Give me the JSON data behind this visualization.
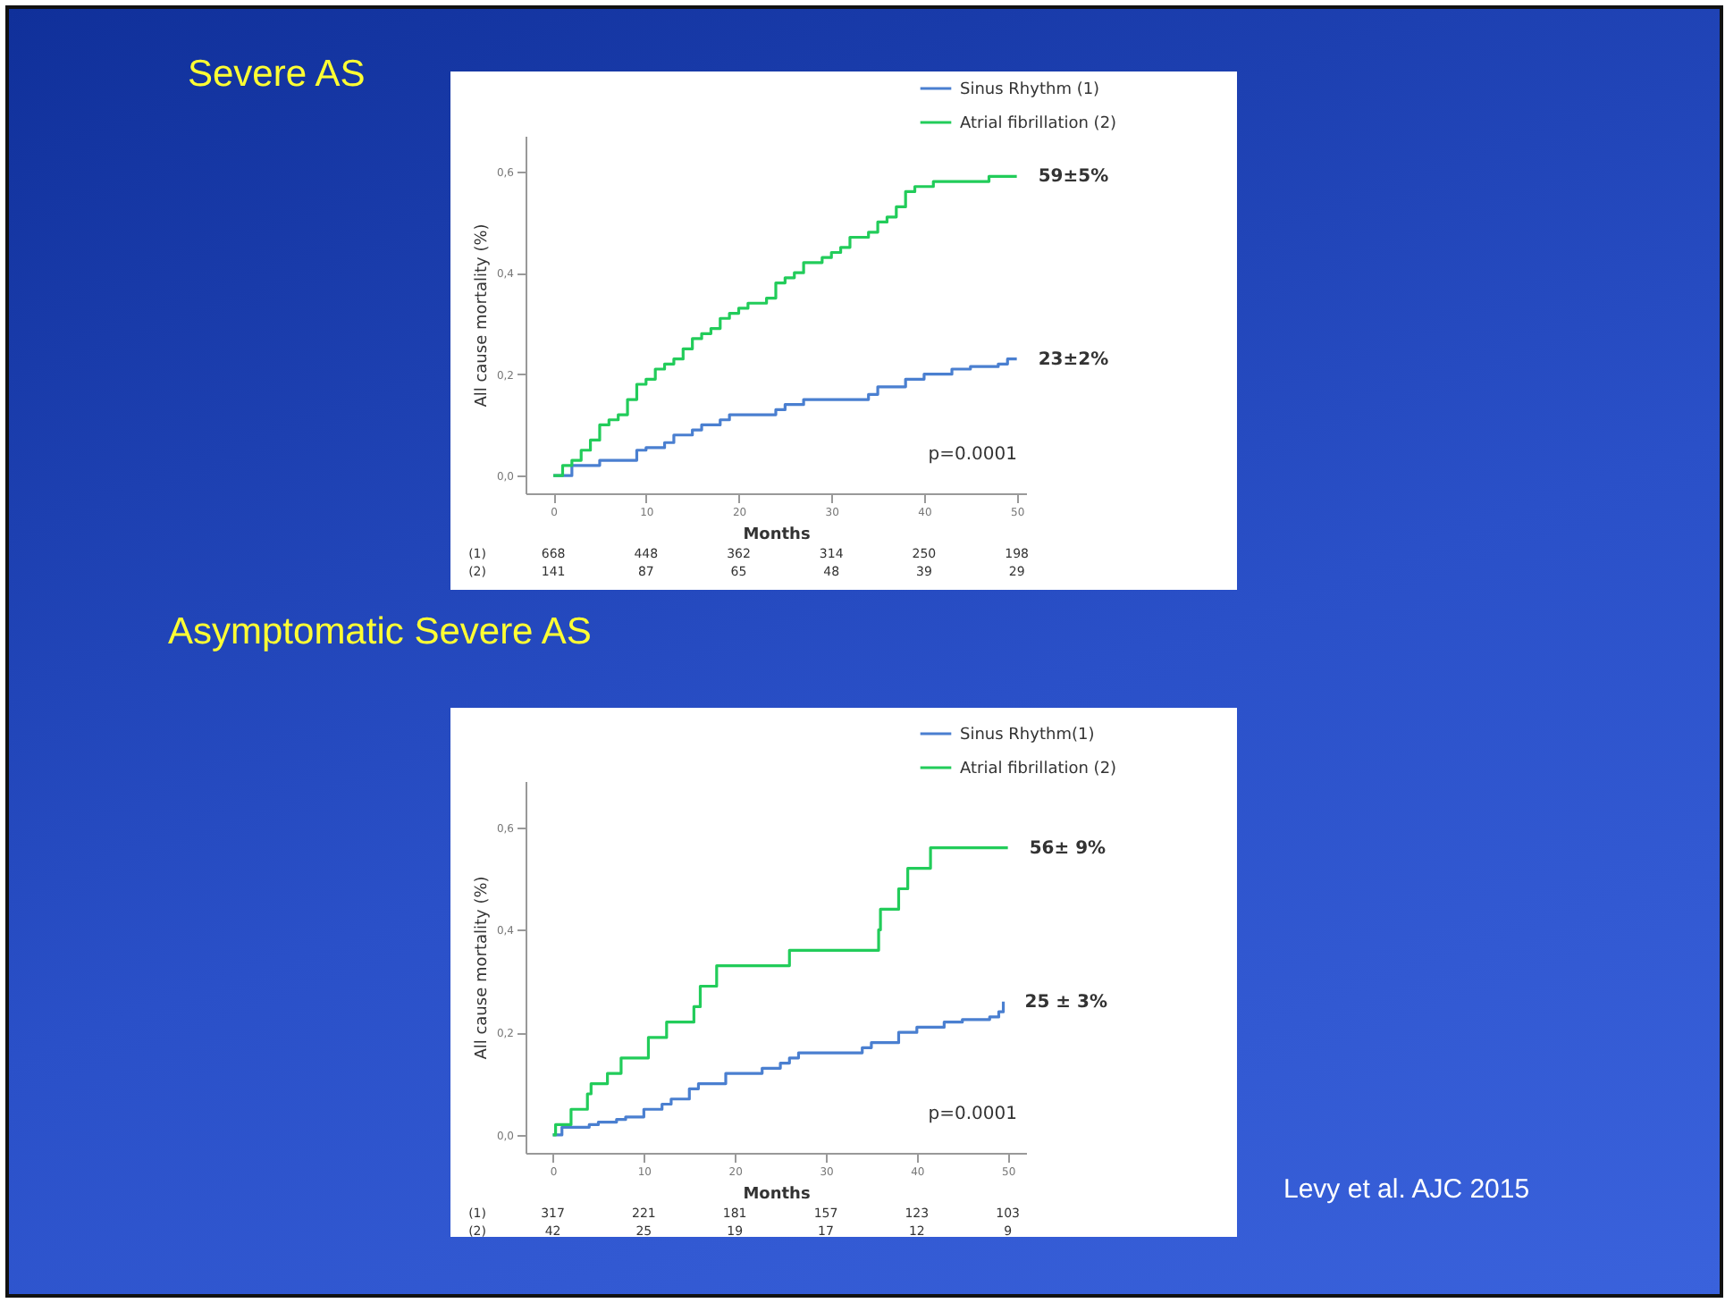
{
  "chart_data": [
    {
      "type": "step",
      "title": "Severe AS",
      "xlabel": "Months",
      "ylabel": "All cause mortality (%)",
      "xlim": [
        -3,
        51
      ],
      "xticks": [
        0,
        10,
        20,
        30,
        40,
        50
      ],
      "ylim": [
        -0.035,
        0.67
      ],
      "yticks": [
        {
          "value": 0,
          "label": "0,0"
        },
        {
          "value": 0.2,
          "label": "0,2"
        },
        {
          "value": 0.4,
          "label": "0,4"
        },
        {
          "value": 0.6,
          "label": "0,6"
        }
      ],
      "legend": "top right",
      "marker": "none",
      "line_style": "solid",
      "series": [
        {
          "name": "Sinus Rhythm (1)",
          "color": "#4a7fd0",
          "x": [
            0,
            2,
            5,
            7,
            9,
            10,
            12,
            13,
            15,
            16,
            18,
            19,
            22,
            24,
            25,
            27,
            33,
            34,
            35,
            37,
            38,
            40,
            43,
            45,
            48,
            49,
            50
          ],
          "values": [
            0,
            0.02,
            0.03,
            0.03,
            0.05,
            0.055,
            0.065,
            0.08,
            0.09,
            0.1,
            0.11,
            0.12,
            0.12,
            0.13,
            0.14,
            0.15,
            0.15,
            0.16,
            0.175,
            0.175,
            0.19,
            0.2,
            0.21,
            0.215,
            0.22,
            0.23,
            0.23
          ]
        },
        {
          "name": "Atrial fibrillation (2)",
          "color": "#22cc5a",
          "x": [
            0,
            1,
            2,
            3,
            4,
            5,
            6,
            7,
            8,
            9,
            10,
            11,
            12,
            13,
            14,
            15,
            16,
            17,
            18,
            19,
            20,
            21,
            23,
            24,
            25,
            26,
            27,
            29,
            30,
            31,
            32,
            34,
            35,
            36,
            37,
            38,
            39,
            41,
            47,
            50
          ],
          "values": [
            0,
            0.02,
            0.03,
            0.05,
            0.07,
            0.1,
            0.11,
            0.12,
            0.15,
            0.18,
            0.19,
            0.21,
            0.22,
            0.23,
            0.25,
            0.27,
            0.28,
            0.29,
            0.31,
            0.32,
            0.33,
            0.34,
            0.35,
            0.38,
            0.39,
            0.4,
            0.42,
            0.43,
            0.44,
            0.45,
            0.47,
            0.48,
            0.5,
            0.51,
            0.53,
            0.56,
            0.57,
            0.58,
            0.59,
            0.59
          ]
        }
      ],
      "annotations": [
        "59±5%",
        "23±2%",
        "p=0.0001",
        "(1)",
        "(2)",
        "668",
        "448",
        "362",
        "314",
        "250",
        "198",
        "141",
        "87",
        "65",
        "48",
        "39",
        "29"
      ]
    },
    {
      "type": "step",
      "title": "Asymptomatic Severe AS",
      "xlabel": "Months",
      "ylabel": "All cause mortality (%)",
      "xlim": [
        -3,
        52
      ],
      "xticks": [
        0,
        10,
        20,
        30,
        40,
        50
      ],
      "ylim": [
        -0.035,
        0.69
      ],
      "yticks": [
        {
          "value": 0,
          "label": "0,0"
        },
        {
          "value": 0.2,
          "label": "0,2"
        },
        {
          "value": 0.4,
          "label": "0,4"
        },
        {
          "value": 0.6,
          "label": "0,6"
        }
      ],
      "legend": "top right",
      "marker": "none",
      "line_style": "solid",
      "series": [
        {
          "name": "Sinus Rhythm(1)",
          "color": "#4a7fd0",
          "x": [
            0,
            1,
            4,
            5,
            7,
            8,
            10,
            12,
            13,
            15,
            16,
            19,
            23,
            25,
            26,
            27,
            33,
            34,
            35,
            38,
            40,
            43,
            45,
            48,
            49,
            49.5
          ],
          "values": [
            0,
            0.015,
            0.02,
            0.025,
            0.03,
            0.035,
            0.05,
            0.06,
            0.07,
            0.09,
            0.1,
            0.12,
            0.13,
            0.14,
            0.15,
            0.16,
            0.16,
            0.17,
            0.18,
            0.2,
            0.21,
            0.22,
            0.225,
            0.23,
            0.24,
            0.26
          ]
        },
        {
          "name": "Atrial fibrillation (2)",
          "color": "#22cc5a",
          "x": [
            0,
            0.3,
            2,
            3.8,
            4.2,
            6,
            7.5,
            10.5,
            12.5,
            15.5,
            16.2,
            18,
            26,
            35.8,
            36,
            38,
            39,
            41.5,
            50
          ],
          "values": [
            0,
            0.02,
            0.05,
            0.08,
            0.1,
            0.12,
            0.15,
            0.19,
            0.22,
            0.25,
            0.29,
            0.33,
            0.36,
            0.4,
            0.44,
            0.48,
            0.52,
            0.56,
            0.56
          ]
        }
      ],
      "annotations": [
        "56± 9%",
        "25 ± 3%",
        "p=0.0001",
        "(1)",
        "(2)",
        "317",
        "221",
        "181",
        "157",
        "123",
        "103",
        "42",
        "25",
        "19",
        "17",
        "12",
        "9",
        "Levy et al. AJC 2015"
      ]
    }
  ]
}
